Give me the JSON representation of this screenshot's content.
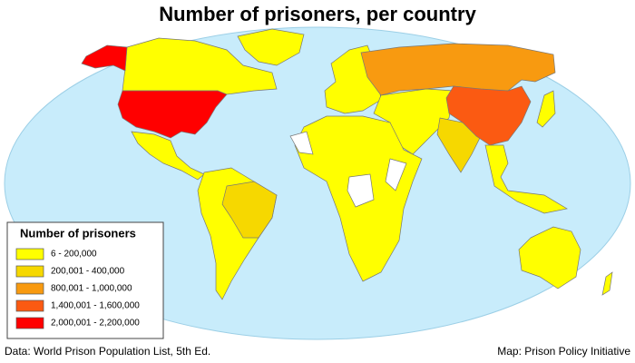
{
  "title": "Number of prisoners, per country",
  "legend": {
    "title": "Number of prisoners",
    "items": [
      {
        "label": "6 - 200,000",
        "color": "#ffff00"
      },
      {
        "label": "200,001 - 400,000",
        "color": "#f6d800"
      },
      {
        "label": "800,001 - 1,000,000",
        "color": "#f89a10"
      },
      {
        "label": "1,400,001 - 1,600,000",
        "color": "#fb5a12"
      },
      {
        "label": "2,000,001 - 2,200,000",
        "color": "#ff0000"
      }
    ]
  },
  "footer": {
    "source": "Data: World Prison Population List, 5th Ed.",
    "credit": "Map: Prison Policy Initiative"
  }
}
